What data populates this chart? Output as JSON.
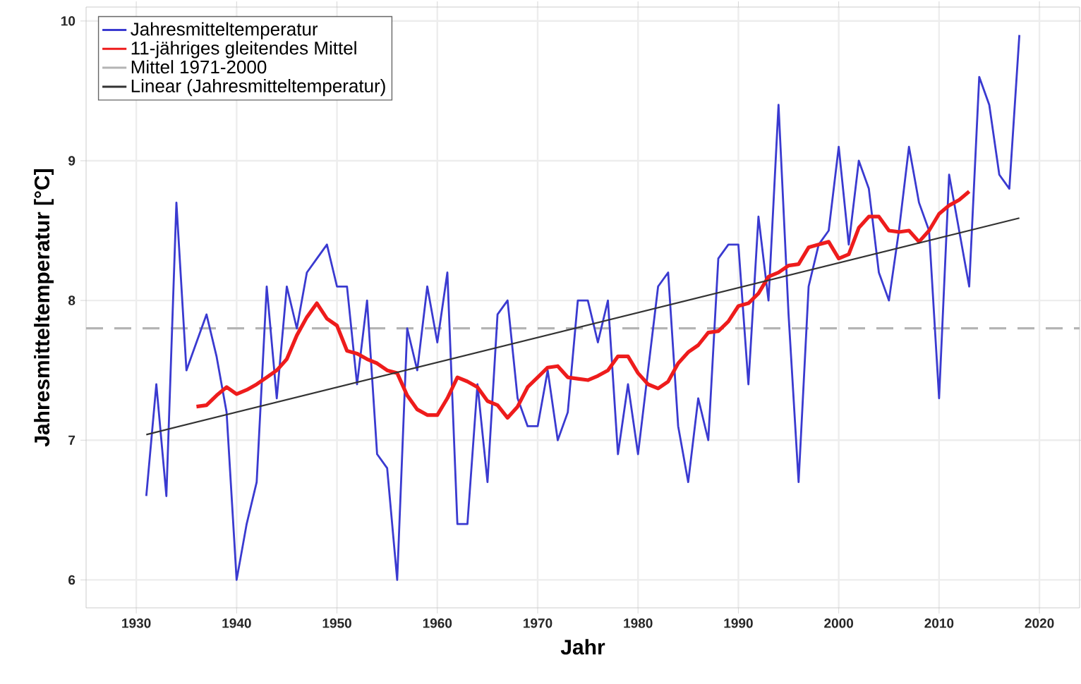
{
  "chart_data": {
    "type": "line",
    "xlabel": "Jahr",
    "ylabel": "Jahresmitteltemperatur [°C]",
    "xlim": [
      1925,
      2024
    ],
    "ylim": [
      5.8,
      10.1
    ],
    "xticks": [
      1930,
      1940,
      1950,
      1960,
      1970,
      1980,
      1990,
      2000,
      2010,
      2020
    ],
    "yticks": [
      6,
      7,
      8,
      9,
      10
    ],
    "grid": true,
    "legend": "top left",
    "marker": "none",
    "line_style": "solid",
    "ref_lines": [
      {
        "axis": "y",
        "value": 7.8,
        "label": "Mittel 1971-2000",
        "color": "#b4b4b4",
        "line_style": "dashed"
      }
    ],
    "series": [
      {
        "name": "Jahresmitteltemperatur",
        "color": "#3a3ad0",
        "x": [
          1931,
          1932,
          1933,
          1934,
          1935,
          1936,
          1937,
          1938,
          1939,
          1940,
          1941,
          1942,
          1943,
          1944,
          1945,
          1946,
          1947,
          1948,
          1949,
          1950,
          1951,
          1952,
          1953,
          1954,
          1955,
          1956,
          1957,
          1958,
          1959,
          1960,
          1961,
          1962,
          1963,
          1964,
          1965,
          1966,
          1967,
          1968,
          1969,
          1970,
          1971,
          1972,
          1973,
          1974,
          1975,
          1976,
          1977,
          1978,
          1979,
          1980,
          1981,
          1982,
          1983,
          1984,
          1985,
          1986,
          1987,
          1988,
          1989,
          1990,
          1991,
          1992,
          1993,
          1994,
          1995,
          1996,
          1997,
          1998,
          1999,
          2000,
          2001,
          2002,
          2003,
          2004,
          2005,
          2006,
          2007,
          2008,
          2009,
          2010,
          2011,
          2012,
          2013,
          2014,
          2015,
          2016,
          2017,
          2018
        ],
        "values": [
          6.6,
          7.4,
          6.6,
          8.7,
          7.5,
          7.7,
          7.9,
          7.6,
          7.2,
          6.0,
          6.4,
          6.7,
          8.1,
          7.3,
          8.1,
          7.8,
          8.2,
          8.3,
          8.4,
          8.1,
          8.1,
          7.4,
          8.0,
          6.9,
          6.8,
          6.0,
          7.8,
          7.5,
          8.1,
          7.7,
          8.2,
          6.4,
          6.4,
          7.4,
          6.7,
          7.9,
          8.0,
          7.3,
          7.1,
          7.1,
          7.5,
          7.0,
          7.2,
          8.0,
          8.0,
          7.7,
          8.0,
          6.9,
          7.4,
          6.9,
          7.5,
          8.1,
          8.2,
          7.1,
          6.7,
          7.3,
          7.0,
          8.3,
          8.4,
          8.4,
          7.4,
          8.6,
          8.0,
          9.4,
          7.9,
          6.7,
          8.1,
          8.4,
          8.5,
          9.1,
          8.4,
          9.0,
          8.8,
          8.2,
          8.0,
          8.5,
          9.1,
          8.7,
          8.5,
          7.3,
          8.9,
          8.5,
          8.1,
          9.6,
          9.4,
          8.9,
          8.8,
          9.9
        ]
      },
      {
        "name": "11-jähriges gleitendes Mittel",
        "color": "#ee1c1c",
        "x": [
          1936,
          1937,
          1938,
          1939,
          1940,
          1941,
          1942,
          1943,
          1944,
          1945,
          1946,
          1947,
          1948,
          1949,
          1950,
          1951,
          1952,
          1953,
          1954,
          1955,
          1956,
          1957,
          1958,
          1959,
          1960,
          1961,
          1962,
          1963,
          1964,
          1965,
          1966,
          1967,
          1968,
          1969,
          1970,
          1971,
          1972,
          1973,
          1974,
          1975,
          1976,
          1977,
          1978,
          1979,
          1980,
          1981,
          1982,
          1983,
          1984,
          1985,
          1986,
          1987,
          1988,
          1989,
          1990,
          1991,
          1992,
          1993,
          1994,
          1995,
          1996,
          1997,
          1998,
          1999,
          2000,
          2001,
          2002,
          2003,
          2004,
          2005,
          2006,
          2007,
          2008,
          2009,
          2010,
          2011,
          2012,
          2013
        ],
        "values": [
          7.24,
          7.25,
          7.32,
          7.38,
          7.33,
          7.36,
          7.4,
          7.45,
          7.5,
          7.58,
          7.75,
          7.88,
          7.98,
          7.87,
          7.82,
          7.64,
          7.62,
          7.58,
          7.55,
          7.5,
          7.48,
          7.32,
          7.22,
          7.18,
          7.18,
          7.3,
          7.45,
          7.42,
          7.38,
          7.28,
          7.25,
          7.16,
          7.24,
          7.38,
          7.45,
          7.52,
          7.53,
          7.45,
          7.44,
          7.43,
          7.46,
          7.5,
          7.6,
          7.6,
          7.48,
          7.4,
          7.37,
          7.42,
          7.55,
          7.63,
          7.68,
          7.77,
          7.78,
          7.85,
          7.96,
          7.98,
          8.05,
          8.17,
          8.2,
          8.25,
          8.26,
          8.38,
          8.4,
          8.42,
          8.3,
          8.33,
          8.52,
          8.6,
          8.6,
          8.5,
          8.49,
          8.5,
          8.42,
          8.5,
          8.62,
          8.68,
          8.72,
          8.78
        ]
      },
      {
        "name": "Linear (Jahresmitteltemperatur)",
        "color": "#333333",
        "x": [
          1931,
          2018
        ],
        "values": [
          7.04,
          8.59
        ]
      }
    ]
  }
}
